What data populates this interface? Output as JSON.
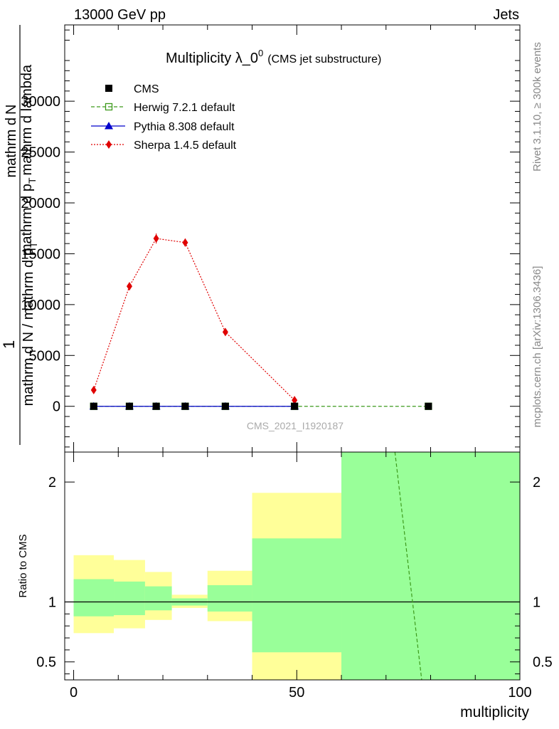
{
  "header": {
    "left": "13000 GeV pp",
    "right": "Jets"
  },
  "side": {
    "rivet": "Rivet 3.1.10, ≥ 300k events",
    "mcplots": "mcplots.cern.ch [arXiv:1306.3436]"
  },
  "chart_data": [
    {
      "type": "line",
      "panel": "main",
      "title_main": "Multiplicity λ_0",
      "title_sup": "0",
      "title_sub": "(CMS jet substructure)",
      "watermark": "CMS_2021_I1920187",
      "ylabel_a": "mathrm d",
      "ylabel_b": "N",
      "ylabel_c": "mathrm d p",
      "ylabel_d": "T",
      "ylabel_e": "mathrm d lambda",
      "ylabel_one": "1",
      "ylabel_den_a": "mathrm d N / mathrm d p",
      "ylabel_den_b": "T",
      "xlim": [
        -2,
        100
      ],
      "ylim": [
        -4500,
        37500
      ],
      "yticks": [
        0,
        5000,
        10000,
        15000,
        20000,
        25000,
        30000
      ],
      "ytick_labels": [
        "0",
        "5000",
        "10000",
        "15000",
        "20000",
        "25000",
        "30000"
      ],
      "legend": [
        "CMS",
        "Herwig 7.2.1 default",
        "Pythia 8.308 default",
        "Sherpa 1.4.5 default"
      ],
      "series": [
        {
          "name": "CMS",
          "color": "#000000",
          "marker": "square",
          "x": [
            4.5,
            12.5,
            18.5,
            25,
            34,
            49.5,
            79.5
          ],
          "y": [
            0,
            0,
            0,
            0,
            0,
            0,
            0
          ]
        },
        {
          "name": "Herwig 7.2.1 default",
          "color": "#3d9a1c",
          "marker": "open-square",
          "dash": "dashed",
          "x": [
            4.5,
            12.5,
            18.5,
            25,
            34,
            49.5,
            79.5
          ],
          "y": [
            0,
            0,
            0,
            0,
            0,
            0,
            0
          ]
        },
        {
          "name": "Pythia 8.308 default",
          "color": "#0000cc",
          "marker": "triangle",
          "x": [
            4.5,
            12.5,
            18.5,
            25,
            34,
            49.5
          ],
          "y": [
            0,
            0,
            0,
            0,
            0,
            0
          ]
        },
        {
          "name": "Sherpa 1.4.5 default",
          "color": "#e00000",
          "marker": "diamond",
          "dash": "dotted",
          "x": [
            4.5,
            12.5,
            18.5,
            25,
            34,
            49.5
          ],
          "y": [
            1600,
            11800,
            16500,
            16100,
            7300,
            600
          ],
          "yerr": [
            150,
            400,
            500,
            400,
            250,
            80
          ]
        }
      ]
    },
    {
      "type": "area",
      "panel": "ratio",
      "ylabel": "Ratio to CMS",
      "xlabel": "multiplicity",
      "xlim": [
        -2,
        100
      ],
      "ylim": [
        0.35,
        2.25
      ],
      "xticks": [
        0,
        50,
        100
      ],
      "xtick_labels": [
        "0",
        "50",
        "100"
      ],
      "yticks": [
        0.5,
        1,
        2
      ],
      "ytick_labels": [
        "0.5",
        "1",
        "2"
      ],
      "bands": [
        {
          "x0": 0,
          "x1": 9,
          "yellow": [
            0.74,
            1.39
          ],
          "green": [
            0.88,
            1.19
          ]
        },
        {
          "x0": 9,
          "x1": 16,
          "yellow": [
            0.78,
            1.35
          ],
          "green": [
            0.89,
            1.17
          ]
        },
        {
          "x0": 16,
          "x1": 22,
          "yellow": [
            0.85,
            1.25
          ],
          "green": [
            0.93,
            1.13
          ]
        },
        {
          "x0": 22,
          "x1": 30,
          "yellow": [
            0.95,
            1.06
          ],
          "green": [
            0.97,
            1.03
          ]
        },
        {
          "x0": 30,
          "x1": 40,
          "yellow": [
            0.84,
            1.26
          ],
          "green": [
            0.92,
            1.14
          ]
        },
        {
          "x0": 40,
          "x1": 60,
          "yellow": [
            0.3,
            1.91
          ],
          "green": [
            0.58,
            1.53
          ]
        },
        {
          "x0": 60,
          "x1": 100,
          "yellow": [
            0.3,
            2.4
          ],
          "green": [
            0.3,
            2.4
          ]
        }
      ],
      "series": [
        {
          "name": "Herwig 7.2.1 default",
          "color": "#3d9a1c",
          "dash": "dashed",
          "x": [
            72,
            78
          ],
          "y": [
            2.25,
            0.35
          ]
        }
      ]
    }
  ]
}
